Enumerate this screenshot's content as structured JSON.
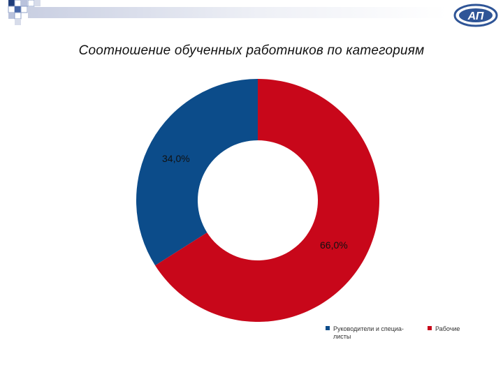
{
  "header": {
    "logo_text": "АП"
  },
  "colors": {
    "series1": "#0c4c8a",
    "series2": "#c8071a",
    "bar_light": "#dfe3ee",
    "accent": "#2f5597"
  },
  "chart_data": {
    "type": "pie",
    "variant": "donut",
    "title": "Соотношение  обученных работников по категориям",
    "legend_position": "bottom-right",
    "slices": [
      {
        "label": "Руководители и специалисты",
        "legend_text": [
          "Руководители и специа-",
          "листы"
        ],
        "value": 34.0,
        "data_label": "34,0%",
        "color": "#0c4c8a"
      },
      {
        "label": "Рабочие",
        "legend_text": [
          "Рабочие"
        ],
        "value": 66.0,
        "data_label": "66,0%",
        "color": "#c8071a"
      }
    ]
  }
}
